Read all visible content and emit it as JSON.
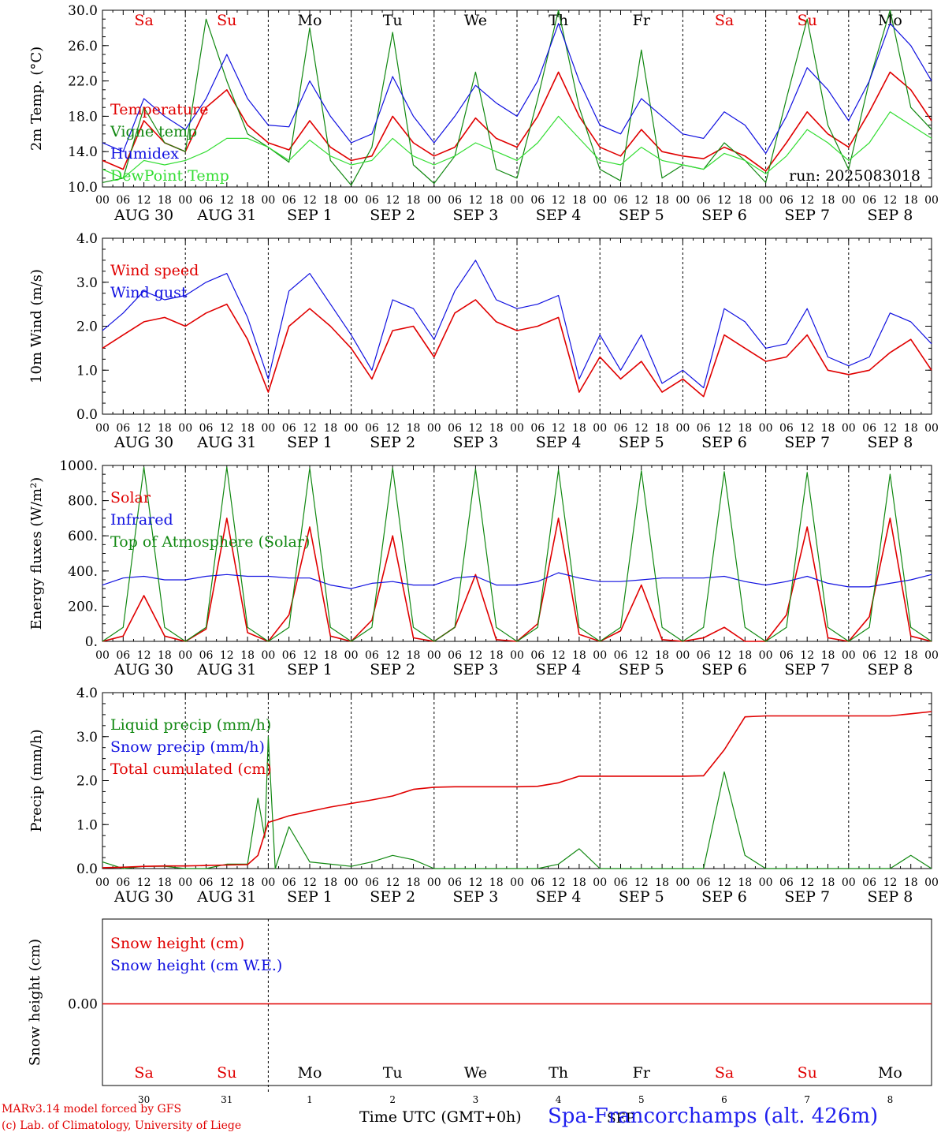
{
  "colors": {
    "red": "#e00000",
    "blue": "#1010e0",
    "green": "#118811",
    "lightgreen": "#33dd33",
    "weekend": "#e00000",
    "weekday": "#000000"
  },
  "hour_ticks": [
    "00",
    "06",
    "12",
    "18"
  ],
  "final_tick": "00",
  "days": [
    {
      "dow": "Sa",
      "date": "AUG 30",
      "num": "30",
      "weekend": true
    },
    {
      "dow": "Su",
      "date": "AUG 31",
      "num": "31",
      "weekend": true
    },
    {
      "dow": "Mo",
      "date": "SEP  1",
      "num": "1",
      "weekend": false
    },
    {
      "dow": "Tu",
      "date": "SEP  2",
      "num": "2",
      "weekend": false
    },
    {
      "dow": "We",
      "date": "SEP  3",
      "num": "3",
      "weekend": false
    },
    {
      "dow": "Th",
      "date": "SEP  4",
      "num": "4",
      "weekend": false
    },
    {
      "dow": "Fr",
      "date": "SEP  5",
      "num": "5",
      "weekend": false
    },
    {
      "dow": "Sa",
      "date": "SEP  6",
      "num": "6",
      "weekend": true
    },
    {
      "dow": "Su",
      "date": "SEP  7",
      "num": "7",
      "weekend": true
    },
    {
      "dow": "Mo",
      "date": "SEP  8",
      "num": "8",
      "weekend": false
    }
  ],
  "footer": {
    "credit_line1": "MARv3.14 model forced by GFS",
    "credit_line2": "(c) Lab. of Climatology, University of Liege",
    "time_label": "Time UTC (GMT+0h)",
    "month_overlay": "SEP",
    "station": "Spa-Francorchamps (alt. 426m)"
  },
  "chart_data": [
    {
      "id": "temperature",
      "type": "line",
      "ylabel": "2m Temp. (°C)",
      "ylim": [
        10,
        30
      ],
      "yticks": [
        "10.0",
        "14.0",
        "18.0",
        "22.0",
        "26.0",
        "30.0"
      ],
      "annotation": "run: 2025083018",
      "x_hours": [
        0,
        6,
        12,
        18,
        24,
        30,
        36,
        42,
        48,
        54,
        60,
        66,
        72,
        78,
        84,
        90,
        96,
        102,
        108,
        114,
        120,
        126,
        132,
        138,
        144,
        150,
        156,
        162,
        168,
        174,
        180,
        186,
        192,
        198,
        204,
        210,
        216,
        222,
        228,
        234,
        240
      ],
      "series": [
        {
          "name": "Temperature",
          "color": "red",
          "values": [
            13,
            12,
            17.5,
            15,
            14,
            19,
            21,
            17,
            15,
            14.2,
            17.5,
            14.5,
            13,
            13.5,
            18,
            15,
            13.5,
            14.5,
            17.8,
            15.5,
            14.5,
            18,
            23,
            18,
            14.5,
            13.5,
            16.5,
            14,
            13.5,
            13.2,
            14.5,
            13.5,
            11.8,
            15,
            18.5,
            16,
            14.5,
            18.5,
            23,
            21,
            17.5
          ]
        },
        {
          "name": "Vigne temp",
          "color": "green",
          "values": [
            10.5,
            11,
            19,
            15,
            14,
            29,
            22,
            16,
            14.5,
            12.8,
            28,
            13,
            10.2,
            14.5,
            27.5,
            12.5,
            10.4,
            13.5,
            23,
            12,
            11,
            20,
            30,
            19,
            12,
            10.7,
            25.5,
            11,
            12.5,
            12,
            15,
            13,
            10.5,
            20,
            29,
            17,
            12,
            22,
            30,
            19,
            16.5
          ]
        },
        {
          "name": "Humidex",
          "color": "blue",
          "values": [
            15,
            14,
            20,
            18,
            16.5,
            20,
            25,
            20,
            17,
            16.8,
            22,
            18,
            15,
            16,
            22.5,
            18,
            15,
            18,
            21.5,
            19.5,
            18,
            22,
            28.5,
            22,
            17,
            16,
            20,
            18,
            16,
            15.5,
            18.5,
            17,
            13.8,
            18,
            23.5,
            21,
            17.5,
            22,
            28.5,
            26,
            22
          ]
        },
        {
          "name": "DewPoint Temp",
          "color": "lightgreen",
          "values": [
            12,
            11,
            13,
            12.5,
            13,
            14,
            15.5,
            15.5,
            14.5,
            13,
            15.3,
            13.5,
            12.5,
            13,
            15.5,
            13.5,
            12.5,
            13.5,
            15,
            14,
            13,
            15,
            18,
            15.5,
            13,
            12.5,
            14.5,
            13,
            12.5,
            12,
            13.8,
            13,
            11.5,
            13.5,
            16.5,
            15,
            13,
            15,
            18.5,
            17,
            15.5
          ]
        }
      ]
    },
    {
      "id": "wind",
      "type": "line",
      "ylabel": "10m Wind (m/s)",
      "ylim": [
        0,
        4
      ],
      "yticks": [
        "0.0",
        "1.0",
        "2.0",
        "3.0",
        "4.0"
      ],
      "x_hours": [
        0,
        6,
        12,
        18,
        24,
        30,
        36,
        42,
        48,
        54,
        60,
        66,
        72,
        78,
        84,
        90,
        96,
        102,
        108,
        114,
        120,
        126,
        132,
        138,
        144,
        150,
        156,
        162,
        168,
        174,
        180,
        186,
        192,
        198,
        204,
        210,
        216,
        222,
        228,
        234,
        240
      ],
      "series": [
        {
          "name": "Wind speed",
          "color": "red",
          "values": [
            1.5,
            1.8,
            2.1,
            2.2,
            2.0,
            2.3,
            2.5,
            1.7,
            0.5,
            2.0,
            2.4,
            2.0,
            1.5,
            0.8,
            1.9,
            2.0,
            1.3,
            2.3,
            2.6,
            2.1,
            1.9,
            2.0,
            2.2,
            0.5,
            1.3,
            0.8,
            1.2,
            0.5,
            0.8,
            0.4,
            1.8,
            1.5,
            1.2,
            1.3,
            1.8,
            1.0,
            0.9,
            1.0,
            1.4,
            1.7,
            1.0
          ]
        },
        {
          "name": "Wind gust",
          "color": "blue",
          "values": [
            1.9,
            2.3,
            2.8,
            2.6,
            2.7,
            3.0,
            3.2,
            2.2,
            0.8,
            2.8,
            3.2,
            2.5,
            1.8,
            1.0,
            2.6,
            2.4,
            1.7,
            2.8,
            3.5,
            2.6,
            2.4,
            2.5,
            2.7,
            0.8,
            1.8,
            1.0,
            1.8,
            0.7,
            1.0,
            0.6,
            2.4,
            2.1,
            1.5,
            1.6,
            2.4,
            1.3,
            1.1,
            1.3,
            2.3,
            2.1,
            1.6
          ]
        }
      ]
    },
    {
      "id": "energy",
      "type": "line",
      "ylabel": "Energy fluxes (W/m²)",
      "ylim": [
        0,
        1000
      ],
      "yticks": [
        "0.",
        "200.",
        "400.",
        "600.",
        "800.",
        "1000."
      ],
      "x_hours": [
        0,
        6,
        12,
        18,
        24,
        30,
        36,
        42,
        48,
        54,
        60,
        66,
        72,
        78,
        84,
        90,
        96,
        102,
        108,
        114,
        120,
        126,
        132,
        138,
        144,
        150,
        156,
        162,
        168,
        174,
        180,
        186,
        192,
        198,
        204,
        210,
        216,
        222,
        228,
        234,
        240
      ],
      "series": [
        {
          "name": "Solar",
          "color": "red",
          "values": [
            0,
            30,
            260,
            30,
            0,
            70,
            700,
            50,
            0,
            150,
            650,
            30,
            0,
            120,
            600,
            20,
            0,
            80,
            380,
            10,
            0,
            100,
            700,
            40,
            0,
            60,
            320,
            10,
            0,
            20,
            80,
            0,
            0,
            150,
            650,
            20,
            0,
            140,
            700,
            30,
            0
          ]
        },
        {
          "name": "Infrared",
          "color": "blue",
          "values": [
            320,
            360,
            370,
            350,
            350,
            370,
            380,
            370,
            370,
            360,
            360,
            320,
            300,
            330,
            340,
            320,
            320,
            360,
            370,
            320,
            320,
            340,
            390,
            360,
            340,
            340,
            350,
            360,
            360,
            360,
            370,
            340,
            320,
            340,
            370,
            330,
            310,
            310,
            330,
            350,
            380
          ]
        },
        {
          "name": "Top of Atmosphere (Solar)",
          "color": "green",
          "values": [
            0,
            80,
            990,
            80,
            0,
            80,
            990,
            80,
            0,
            80,
            985,
            80,
            0,
            80,
            985,
            80,
            0,
            80,
            980,
            80,
            0,
            80,
            975,
            80,
            0,
            80,
            970,
            80,
            0,
            80,
            965,
            80,
            0,
            80,
            960,
            80,
            0,
            80,
            950,
            80,
            0
          ]
        }
      ]
    },
    {
      "id": "precip",
      "type": "line",
      "ylabel": "Precip (mm/h)",
      "ylim": [
        0,
        4
      ],
      "yticks": [
        "0.0",
        "1.0",
        "2.0",
        "3.0",
        "4.0"
      ],
      "x_hours": [
        0,
        6,
        12,
        18,
        24,
        30,
        36,
        42,
        45,
        47,
        48,
        50,
        54,
        60,
        66,
        72,
        78,
        84,
        90,
        96,
        102,
        108,
        114,
        120,
        126,
        132,
        138,
        144,
        150,
        156,
        162,
        168,
        174,
        180,
        186,
        192,
        198,
        204,
        210,
        216,
        222,
        228,
        234,
        240
      ],
      "series": [
        {
          "name": "Liquid precip (mm/h)",
          "color": "green",
          "values": [
            0.15,
            0,
            0.05,
            0.05,
            0,
            0,
            0.1,
            0.1,
            1.6,
            0.7,
            3.0,
            0,
            0.95,
            0.15,
            0.1,
            0.05,
            0.15,
            0.3,
            0.2,
            0,
            0,
            0,
            0,
            0,
            0,
            0.1,
            0.45,
            0,
            0,
            0,
            0,
            0,
            0,
            2.2,
            0.3,
            0,
            0,
            0,
            0,
            0,
            0,
            0,
            0.3,
            0
          ]
        },
        {
          "name": "Snow precip (mm/h)",
          "color": "blue",
          "values": []
        },
        {
          "name": "Total cumulated (cm)",
          "color": "red",
          "values": [
            0.02,
            0.03,
            0.05,
            0.06,
            0.06,
            0.07,
            0.08,
            0.09,
            0.3,
            0.8,
            1.05,
            1.1,
            1.2,
            1.3,
            1.4,
            1.48,
            1.56,
            1.65,
            1.8,
            1.85,
            1.86,
            1.86,
            1.86,
            1.86,
            1.87,
            1.95,
            2.1,
            2.1,
            2.1,
            2.1,
            2.1,
            2.1,
            2.11,
            2.7,
            3.45,
            3.47,
            3.47,
            3.47,
            3.47,
            3.47,
            3.47,
            3.47,
            3.52,
            3.57
          ]
        }
      ]
    },
    {
      "id": "snow",
      "type": "line",
      "ylabel": "Snow height (cm)",
      "yticks": [
        "0.00"
      ],
      "x_hours": [
        0,
        240
      ],
      "series": [
        {
          "name": "Snow height (cm)",
          "color": "red",
          "values": [
            0,
            0
          ]
        },
        {
          "name": "Snow height (cm W.E.)",
          "color": "blue",
          "values": []
        }
      ]
    }
  ]
}
